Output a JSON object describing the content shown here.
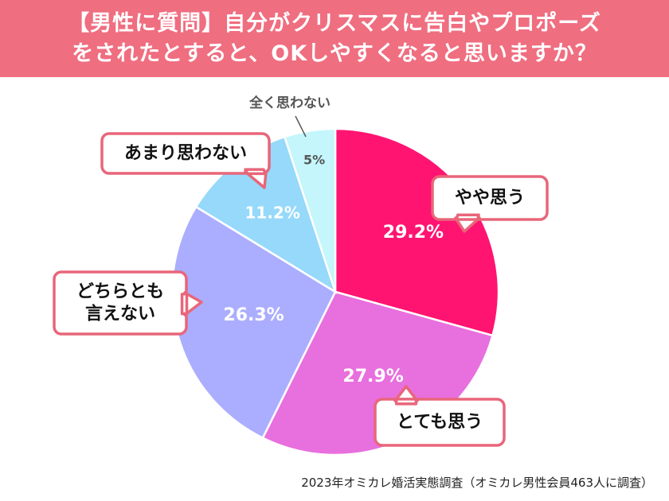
{
  "title": {
    "line1": "【男性に質問】自分がクリスマスに告白やプロポーズ",
    "line2": "をされたとすると、OKしやすくなると思いますか？"
  },
  "chart_data": {
    "type": "pie",
    "start": "12 o'clock",
    "direction": "clockwise",
    "slices": [
      {
        "label": "やや思う",
        "value": 29.2,
        "display": "29.2%",
        "color": "#ff1471",
        "label_color": "#ffffff"
      },
      {
        "label": "とても思う",
        "value": 27.9,
        "display": "27.9%",
        "color": "#e86fde",
        "label_color": "#ffffff"
      },
      {
        "label": "どちらとも言えない",
        "label_lines": [
          "どちらとも",
          "言えない"
        ],
        "value": 26.3,
        "display": "26.3%",
        "color": "#abaefe",
        "label_color": "#ffffff"
      },
      {
        "label": "あまり思わない",
        "value": 11.2,
        "display": "11.2%",
        "color": "#96d9fa",
        "label_color": "#ffffff"
      },
      {
        "label": "全く思わない",
        "value": 5,
        "display": "5%",
        "color": "#c4f6fb",
        "label_color": "#555555"
      }
    ]
  },
  "source": "2023年オミカレ婚活実態調査（オミカレ男性会員463人に調査）"
}
